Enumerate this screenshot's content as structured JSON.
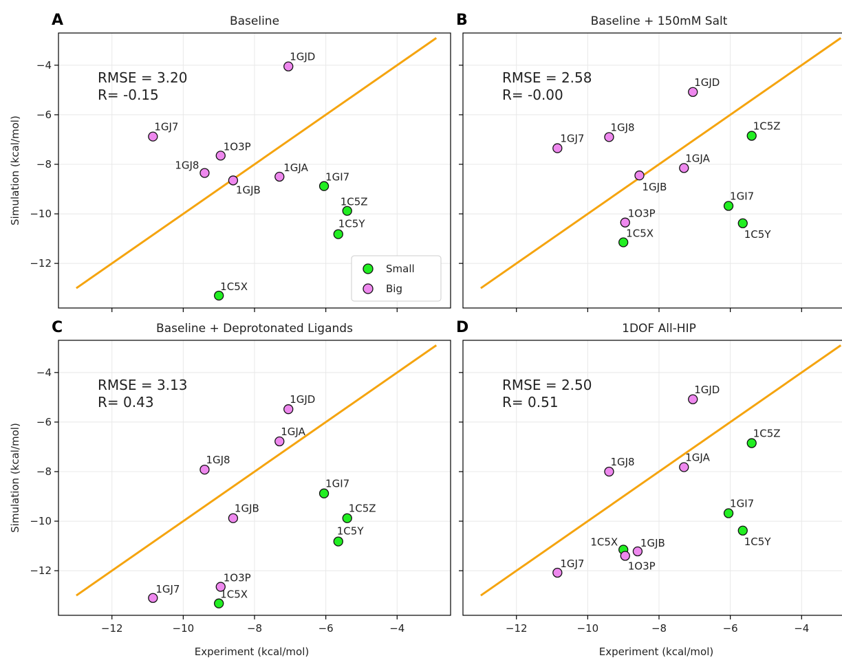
{
  "figure": {
    "xlabel": "Experiment (kcal/mol)",
    "ylabel": "Simulation (kcal/mol)"
  },
  "colors": {
    "small": "#22ee22",
    "big": "#ee88ee",
    "line": "#f5a40f",
    "grid": "#e8e8e8"
  },
  "legend": {
    "small": "Small",
    "big": "Big",
    "placement": "lower-right of panel A"
  },
  "chart_data": [
    {
      "type": "scatter",
      "letter": "A",
      "title": "Baseline",
      "rmse": "RMSE = 3.20",
      "r": "R= -0.15",
      "xlim": [
        -13.5,
        -2.5
      ],
      "ylim": [
        -13.8,
        -2.7
      ],
      "xticks": [
        -12,
        -10,
        -8,
        -6,
        -4
      ],
      "yticks": [
        -12,
        -10,
        -8,
        -6,
        -4
      ],
      "grid": true,
      "identity_line": [
        [
          -13,
          -13
        ],
        [
          -2.9,
          -2.9
        ]
      ],
      "points": [
        {
          "label": "1GJD",
          "x": -7.05,
          "y": -4.05,
          "size": "Big"
        },
        {
          "label": "1GJ7",
          "x": -10.85,
          "y": -6.88,
          "size": "Big"
        },
        {
          "label": "1O3P",
          "x": -8.95,
          "y": -7.65,
          "size": "Big"
        },
        {
          "label": "1GJ8",
          "x": -9.4,
          "y": -8.35,
          "size": "Big"
        },
        {
          "label": "1GJA",
          "x": -7.3,
          "y": -8.5,
          "size": "Big"
        },
        {
          "label": "1GJB",
          "x": -8.6,
          "y": -8.65,
          "size": "Big"
        },
        {
          "label": "1GI7",
          "x": -6.05,
          "y": -8.88,
          "size": "Small"
        },
        {
          "label": "1C5Z",
          "x": -5.4,
          "y": -9.88,
          "size": "Small"
        },
        {
          "label": "1C5Y",
          "x": -5.65,
          "y": -10.82,
          "size": "Small"
        },
        {
          "label": "1C5X",
          "x": -9.0,
          "y": -13.3,
          "size": "Small"
        }
      ]
    },
    {
      "type": "scatter",
      "letter": "B",
      "title": "Baseline + 150mM Salt",
      "rmse": "RMSE = 2.58",
      "r": "R= -0.00",
      "xlim": [
        -13.5,
        -2.5
      ],
      "ylim": [
        -13.8,
        -2.7
      ],
      "xticks": [
        -12,
        -10,
        -8,
        -6,
        -4
      ],
      "yticks": [
        -12,
        -10,
        -8,
        -6,
        -4
      ],
      "grid": true,
      "identity_line": [
        [
          -13,
          -13
        ],
        [
          -2.9,
          -2.9
        ]
      ],
      "points": [
        {
          "label": "1GJD",
          "x": -7.05,
          "y": -5.08,
          "size": "Big"
        },
        {
          "label": "1C5Z",
          "x": -5.4,
          "y": -6.85,
          "size": "Small"
        },
        {
          "label": "1GJ8",
          "x": -9.4,
          "y": -6.9,
          "size": "Big"
        },
        {
          "label": "1GJ7",
          "x": -10.85,
          "y": -7.35,
          "size": "Big"
        },
        {
          "label": "1GJA",
          "x": -7.3,
          "y": -8.15,
          "size": "Big"
        },
        {
          "label": "1GJB",
          "x": -8.55,
          "y": -8.45,
          "size": "Big"
        },
        {
          "label": "1GI7",
          "x": -6.05,
          "y": -9.68,
          "size": "Small"
        },
        {
          "label": "1O3P",
          "x": -8.95,
          "y": -10.35,
          "size": "Big"
        },
        {
          "label": "1C5Y",
          "x": -5.65,
          "y": -10.38,
          "size": "Small"
        },
        {
          "label": "1C5X",
          "x": -9.0,
          "y": -11.15,
          "size": "Small"
        }
      ]
    },
    {
      "type": "scatter",
      "letter": "C",
      "title": "Baseline + Deprotonated Ligands",
      "rmse": "RMSE = 3.13",
      "r": "R= 0.43",
      "xlim": [
        -13.5,
        -2.5
      ],
      "ylim": [
        -13.8,
        -2.7
      ],
      "xticks": [
        -12,
        -10,
        -8,
        -6,
        -4
      ],
      "yticks": [
        -12,
        -10,
        -8,
        -6,
        -4
      ],
      "grid": true,
      "identity_line": [
        [
          -13,
          -13
        ],
        [
          -2.9,
          -2.9
        ]
      ],
      "points": [
        {
          "label": "1GJD",
          "x": -7.05,
          "y": -5.48,
          "size": "Big"
        },
        {
          "label": "1GJA",
          "x": -7.3,
          "y": -6.78,
          "size": "Big"
        },
        {
          "label": "1GJ8",
          "x": -9.4,
          "y": -7.92,
          "size": "Big"
        },
        {
          "label": "1GI7",
          "x": -6.05,
          "y": -8.88,
          "size": "Small"
        },
        {
          "label": "1GJB",
          "x": -8.6,
          "y": -9.88,
          "size": "Big"
        },
        {
          "label": "1C5Z",
          "x": -5.4,
          "y": -9.88,
          "size": "Small"
        },
        {
          "label": "1C5Y",
          "x": -5.65,
          "y": -10.82,
          "size": "Small"
        },
        {
          "label": "1O3P",
          "x": -8.95,
          "y": -12.65,
          "size": "Big"
        },
        {
          "label": "1GJ7",
          "x": -10.85,
          "y": -13.1,
          "size": "Big"
        },
        {
          "label": "1C5X",
          "x": -9.0,
          "y": -13.32,
          "size": "Small"
        }
      ]
    },
    {
      "type": "scatter",
      "letter": "D",
      "title": "1DOF All-HIP",
      "rmse": "RMSE = 2.50",
      "r": "R= 0.51",
      "xlim": [
        -13.5,
        -2.5
      ],
      "ylim": [
        -13.8,
        -2.7
      ],
      "xticks": [
        -12,
        -10,
        -8,
        -6,
        -4
      ],
      "yticks": [
        -12,
        -10,
        -8,
        -6,
        -4
      ],
      "grid": true,
      "identity_line": [
        [
          -13,
          -13
        ],
        [
          -2.9,
          -2.9
        ]
      ],
      "points": [
        {
          "label": "1GJD",
          "x": -7.05,
          "y": -5.08,
          "size": "Big"
        },
        {
          "label": "1C5Z",
          "x": -5.4,
          "y": -6.85,
          "size": "Small"
        },
        {
          "label": "1GJA",
          "x": -7.3,
          "y": -7.82,
          "size": "Big"
        },
        {
          "label": "1GJ8",
          "x": -9.4,
          "y": -8.0,
          "size": "Big"
        },
        {
          "label": "1GI7",
          "x": -6.05,
          "y": -9.68,
          "size": "Small"
        },
        {
          "label": "1C5Y",
          "x": -5.65,
          "y": -10.38,
          "size": "Small"
        },
        {
          "label": "1C5X",
          "x": -9.0,
          "y": -11.15,
          "size": "Small"
        },
        {
          "label": "1GJB",
          "x": -8.6,
          "y": -11.22,
          "size": "Big"
        },
        {
          "label": "1O3P",
          "x": -8.95,
          "y": -11.4,
          "size": "Big"
        },
        {
          "label": "1GJ7",
          "x": -10.85,
          "y": -12.08,
          "size": "Big"
        }
      ]
    }
  ]
}
